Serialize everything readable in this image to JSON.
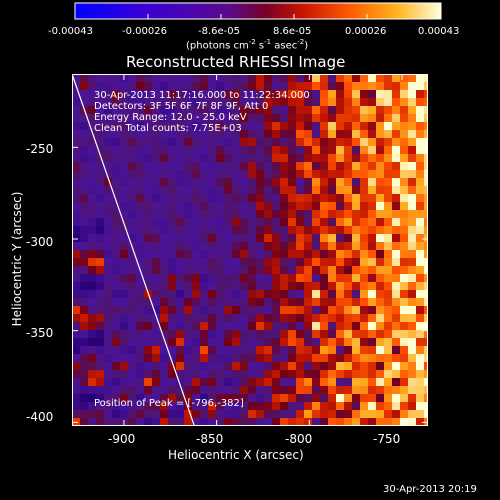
{
  "colorbar": {
    "ticks": [
      "-0.00043",
      "-0.00026",
      "-8.6e-05",
      "8.6e-05",
      "0.00026",
      "0.00043"
    ],
    "unit_prefix": "(photons cm",
    "unit_exp1": "-2",
    "unit_mid": " s",
    "unit_exp2": "-1",
    "unit_mid2": " asec",
    "unit_exp3": "-2",
    "unit_suffix": ")"
  },
  "header": {
    "time_range": "30-Apr-2013 11:17:16.000 to 11:22:34.000",
    "detectors": "Detectors: 3F 5F 6F 7F 8F 9F, Att 0",
    "energy": "Energy Range: 12.0 - 25.0 keV",
    "clean": "Clean     Total counts: 7.75E+03",
    "peak": "Position of Peak = [-796,-382]"
  },
  "footer": {
    "timestamp": "30-Apr-2013 20:19"
  },
  "chart_data": {
    "type": "heatmap",
    "title": "Reconstructed RHESSI Image",
    "xlabel": "Heliocentric X (arcsec)",
    "ylabel": "Heliocentric Y (arcsec)",
    "xlim": [
      -928,
      -736
    ],
    "ylim": [
      -402,
      -210
    ],
    "xticks": [
      "-900",
      "-850",
      "-800",
      "-750"
    ],
    "yticks": [
      "-250",
      "-300",
      "-350",
      "-400"
    ],
    "xtick_values": [
      -900,
      -850,
      -800,
      -750
    ],
    "ytick_values": [
      -250,
      -300,
      -350,
      -400
    ],
    "color_range": [
      -0.00043,
      0.00043
    ],
    "peak": [
      -796,
      -382
    ],
    "limb_line": {
      "x": [
        -928,
        -862
      ],
      "y": [
        -210,
        -402
      ]
    }
  }
}
